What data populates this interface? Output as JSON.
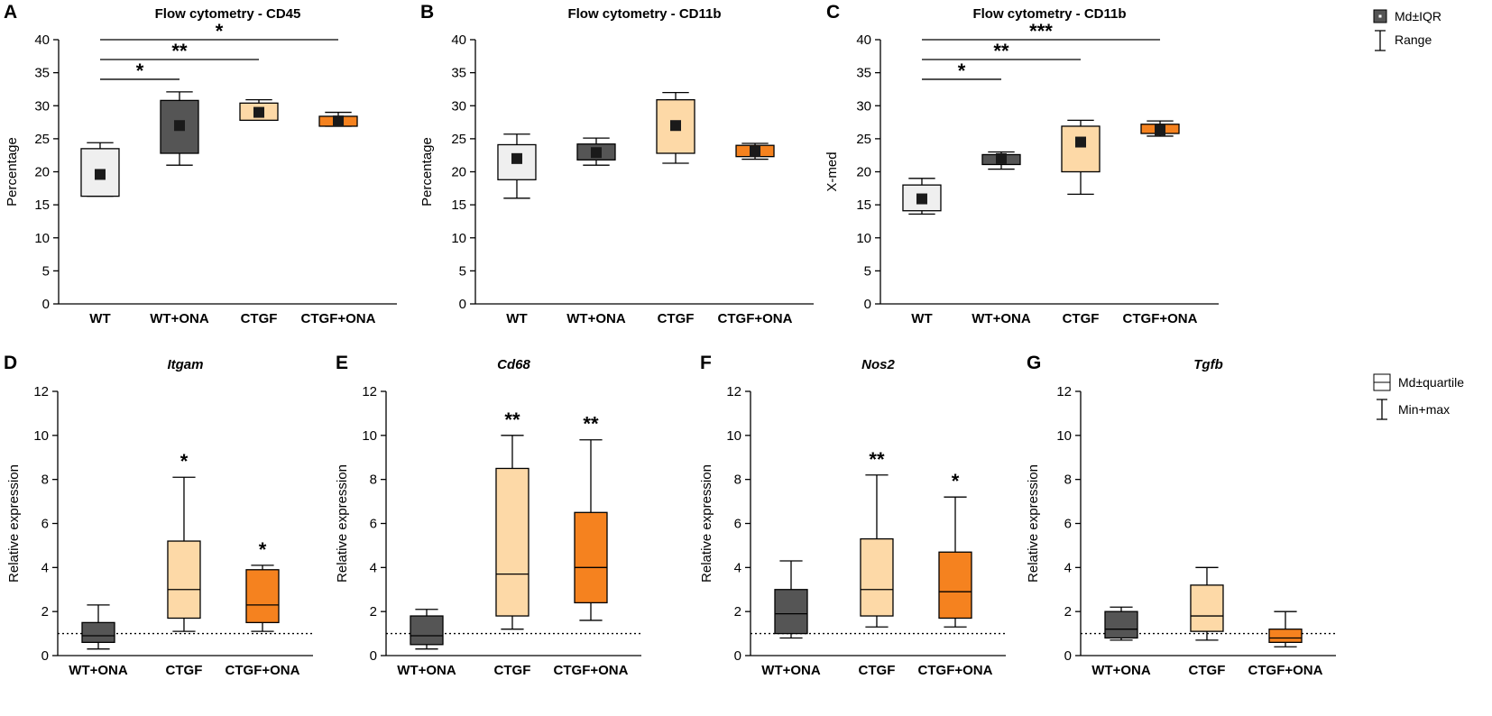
{
  "colors": {
    "WT": "#efefef",
    "WT+ONA": "#555555",
    "CTGF": "#fdd9a7",
    "CTGF+ONA": "#f5821f"
  },
  "legend_top": {
    "icon": "box-md-iqr-icon",
    "items": [
      "Md±IQR",
      "Range"
    ]
  },
  "legend_bottom": {
    "icon": "box-md-quartile-icon",
    "items": [
      "Md±quartile",
      "Min+max"
    ]
  },
  "chart_data": [
    {
      "type": "box",
      "panel": "A",
      "title": "Flow cytometry - CD45",
      "xlabel": "",
      "ylabel": "Percentage",
      "ylim": [
        0,
        40
      ],
      "yticks": [
        0,
        5,
        10,
        15,
        20,
        25,
        30,
        35,
        40
      ],
      "categories": [
        "WT",
        "WT+ONA",
        "CTGF",
        "CTGF+ONA"
      ],
      "median_marker": "square",
      "boxes": [
        {
          "min": 16.3,
          "q1": 16.3,
          "median": 19.6,
          "q3": 23.5,
          "max": 24.4
        },
        {
          "min": 21.0,
          "q1": 22.8,
          "median": 27.0,
          "q3": 30.8,
          "max": 32.1
        },
        {
          "min": 27.8,
          "q1": 27.8,
          "median": 29.0,
          "q3": 30.4,
          "max": 30.9
        },
        {
          "min": 26.9,
          "q1": 26.9,
          "median": 27.7,
          "q3": 28.4,
          "max": 29.0
        }
      ],
      "significance": [
        {
          "from": 0,
          "to": 1,
          "y": 34.0,
          "label": "*"
        },
        {
          "from": 0,
          "to": 2,
          "y": 37.0,
          "label": "**"
        },
        {
          "from": 0,
          "to": 3,
          "y": 40.0,
          "label": "*"
        }
      ],
      "annotations": [],
      "reference_line": null
    },
    {
      "type": "box",
      "panel": "B",
      "title": "Flow cytometry - CD11b",
      "xlabel": "",
      "ylabel": "Percentage",
      "ylim": [
        0,
        40
      ],
      "yticks": [
        0,
        5,
        10,
        15,
        20,
        25,
        30,
        35,
        40
      ],
      "categories": [
        "WT",
        "WT+ONA",
        "CTGF",
        "CTGF+ONA"
      ],
      "median_marker": "square",
      "boxes": [
        {
          "min": 16.0,
          "q1": 18.8,
          "median": 22.0,
          "q3": 24.1,
          "max": 25.7
        },
        {
          "min": 21.0,
          "q1": 21.8,
          "median": 22.9,
          "q3": 24.2,
          "max": 25.1
        },
        {
          "min": 21.3,
          "q1": 22.8,
          "median": 27.0,
          "q3": 30.9,
          "max": 32.0
        },
        {
          "min": 21.9,
          "q1": 22.3,
          "median": 23.1,
          "q3": 24.0,
          "max": 24.3
        }
      ],
      "significance": [],
      "annotations": [],
      "reference_line": null
    },
    {
      "type": "box",
      "panel": "C",
      "title": "Flow cytometry - CD11b",
      "xlabel": "",
      "ylabel": "X-med",
      "ylim": [
        0,
        40
      ],
      "yticks": [
        0,
        5,
        10,
        15,
        20,
        25,
        30,
        35,
        40
      ],
      "categories": [
        "WT",
        "WT+ONA",
        "CTGF",
        "CTGF+ONA"
      ],
      "median_marker": "square",
      "boxes": [
        {
          "min": 13.6,
          "q1": 14.1,
          "median": 15.9,
          "q3": 18.0,
          "max": 19.0
        },
        {
          "min": 20.4,
          "q1": 21.1,
          "median": 22.0,
          "q3": 22.6,
          "max": 23.0
        },
        {
          "min": 16.6,
          "q1": 20.0,
          "median": 24.5,
          "q3": 26.9,
          "max": 27.8
        },
        {
          "min": 25.4,
          "q1": 25.8,
          "median": 26.3,
          "q3": 27.2,
          "max": 27.7
        }
      ],
      "significance": [
        {
          "from": 0,
          "to": 1,
          "y": 34.0,
          "label": "*"
        },
        {
          "from": 0,
          "to": 2,
          "y": 37.0,
          "label": "**"
        },
        {
          "from": 0,
          "to": 3,
          "y": 40.0,
          "label": "***"
        }
      ],
      "annotations": [],
      "reference_line": null
    },
    {
      "type": "box",
      "panel": "D",
      "title": "Itgam",
      "title_italic": true,
      "xlabel": "",
      "ylabel": "Relative expression",
      "ylim": [
        0,
        12
      ],
      "yticks": [
        0,
        2,
        4,
        6,
        8,
        10,
        12
      ],
      "categories": [
        "WT+ONA",
        "CTGF",
        "CTGF+ONA"
      ],
      "median_marker": "line",
      "boxes": [
        {
          "min": 0.3,
          "q1": 0.6,
          "median": 0.9,
          "q3": 1.5,
          "max": 2.3
        },
        {
          "min": 1.1,
          "q1": 1.7,
          "median": 3.0,
          "q3": 5.2,
          "max": 8.1
        },
        {
          "min": 1.1,
          "q1": 1.5,
          "median": 2.3,
          "q3": 3.9,
          "max": 4.1
        }
      ],
      "significance": [],
      "annotations": [
        {
          "index": 1,
          "label": "*"
        },
        {
          "index": 2,
          "label": "*"
        }
      ],
      "reference_line": 1
    },
    {
      "type": "box",
      "panel": "E",
      "title": "Cd68",
      "title_italic": true,
      "xlabel": "",
      "ylabel": "Relative expression",
      "ylim": [
        0,
        12
      ],
      "yticks": [
        0,
        2,
        4,
        6,
        8,
        10,
        12
      ],
      "categories": [
        "WT+ONA",
        "CTGF",
        "CTGF+ONA"
      ],
      "median_marker": "line",
      "boxes": [
        {
          "min": 0.3,
          "q1": 0.5,
          "median": 0.9,
          "q3": 1.8,
          "max": 2.1
        },
        {
          "min": 1.2,
          "q1": 1.8,
          "median": 3.7,
          "q3": 8.5,
          "max": 10.0
        },
        {
          "min": 1.6,
          "q1": 2.4,
          "median": 4.0,
          "q3": 6.5,
          "max": 9.8
        }
      ],
      "significance": [],
      "annotations": [
        {
          "index": 1,
          "label": "**"
        },
        {
          "index": 2,
          "label": "**"
        }
      ],
      "reference_line": 1
    },
    {
      "type": "box",
      "panel": "F",
      "title": "Nos2",
      "title_italic": true,
      "xlabel": "",
      "ylabel": "Relative expression",
      "ylim": [
        0,
        12
      ],
      "yticks": [
        0,
        2,
        4,
        6,
        8,
        10,
        12
      ],
      "categories": [
        "WT+ONA",
        "CTGF",
        "CTGF+ONA"
      ],
      "median_marker": "line",
      "boxes": [
        {
          "min": 0.8,
          "q1": 1.0,
          "median": 1.9,
          "q3": 3.0,
          "max": 4.3
        },
        {
          "min": 1.3,
          "q1": 1.8,
          "median": 3.0,
          "q3": 5.3,
          "max": 8.2
        },
        {
          "min": 1.3,
          "q1": 1.7,
          "median": 2.9,
          "q3": 4.7,
          "max": 7.2
        }
      ],
      "significance": [],
      "annotations": [
        {
          "index": 1,
          "label": "**"
        },
        {
          "index": 2,
          "label": "*"
        }
      ],
      "reference_line": 1
    },
    {
      "type": "box",
      "panel": "G",
      "title": "Tgfb",
      "title_italic": true,
      "xlabel": "",
      "ylabel": "Relative expression",
      "ylim": [
        0,
        12
      ],
      "yticks": [
        0,
        2,
        4,
        6,
        8,
        10,
        12
      ],
      "categories": [
        "WT+ONA",
        "CTGF",
        "CTGF+ONA"
      ],
      "median_marker": "line",
      "boxes": [
        {
          "min": 0.7,
          "q1": 0.8,
          "median": 1.2,
          "q3": 2.0,
          "max": 2.2
        },
        {
          "min": 0.7,
          "q1": 1.1,
          "median": 1.8,
          "q3": 3.2,
          "max": 4.0
        },
        {
          "min": 0.4,
          "q1": 0.6,
          "median": 0.8,
          "q3": 1.2,
          "max": 2.0
        }
      ],
      "significance": [],
      "annotations": [],
      "reference_line": 1
    }
  ]
}
